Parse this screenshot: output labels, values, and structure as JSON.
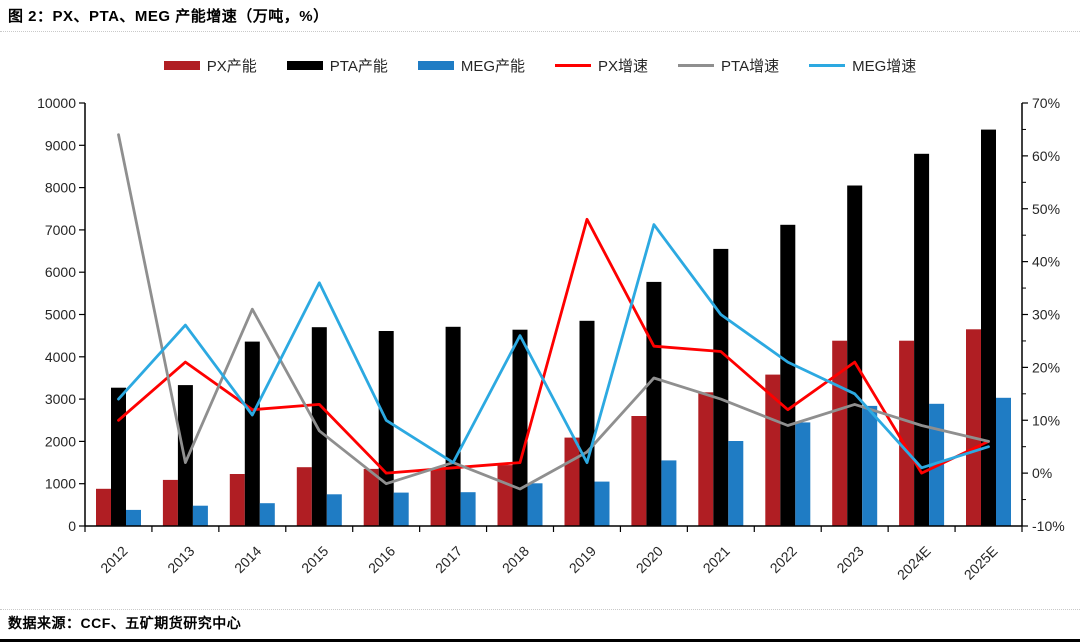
{
  "title": "图 2：PX、PTA、MEG 产能增速（万吨，%）",
  "source": "数据来源：CCF、五矿期货研究中心",
  "chart_data": {
    "type": "bar+line combo",
    "categories": [
      "2012",
      "2013",
      "2014",
      "2015",
      "2016",
      "2017",
      "2018",
      "2019",
      "2020",
      "2021",
      "2022",
      "2023",
      "2024E",
      "2025E"
    ],
    "bar_series": [
      {
        "name": "PX产能",
        "color": "#b01e23",
        "axis": "left",
        "values": [
          880,
          1090,
          1230,
          1390,
          1350,
          1350,
          1440,
          2090,
          2600,
          3160,
          3580,
          4380,
          4380,
          4650
        ]
      },
      {
        "name": "PTA产能",
        "color": "#000000",
        "axis": "left",
        "values": [
          3270,
          3330,
          4360,
          4700,
          4610,
          4710,
          4640,
          4850,
          5770,
          6550,
          7120,
          8050,
          8800,
          9370
        ]
      },
      {
        "name": "MEG产能",
        "color": "#1f7cc4",
        "axis": "left",
        "values": [
          380,
          480,
          540,
          750,
          790,
          800,
          1010,
          1050,
          1550,
          2010,
          2450,
          2840,
          2890,
          3030
        ]
      }
    ],
    "line_series": [
      {
        "name": "PX增速",
        "color": "#fe0000",
        "axis": "right",
        "values": [
          10,
          21,
          12,
          13,
          0,
          1,
          2,
          48,
          24,
          23,
          12,
          21,
          0,
          6
        ]
      },
      {
        "name": "PTA增速",
        "color": "#8f8f8f",
        "axis": "right",
        "values": [
          64,
          2,
          31,
          8,
          -2,
          2,
          -3,
          4,
          18,
          14,
          9,
          13,
          9,
          6
        ]
      },
      {
        "name": "MEG增速",
        "color": "#2ca9e1",
        "axis": "right",
        "values": [
          14,
          28,
          11,
          36,
          10,
          2,
          26,
          2,
          47,
          30,
          21,
          15,
          1,
          5
        ]
      }
    ],
    "left_axis": {
      "min": 0,
      "max": 10000,
      "step": 1000,
      "tick_labels": [
        "0",
        "1000",
        "2000",
        "3000",
        "4000",
        "5000",
        "6000",
        "7000",
        "8000",
        "9000",
        "10000"
      ]
    },
    "right_axis": {
      "min": -10,
      "max": 70,
      "step": 10,
      "minor_step": 5,
      "tick_labels": [
        "-10%",
        "0%",
        "10%",
        "20%",
        "30%",
        "40%",
        "50%",
        "60%",
        "70%"
      ]
    },
    "grid": "off",
    "legend_position": "top"
  }
}
